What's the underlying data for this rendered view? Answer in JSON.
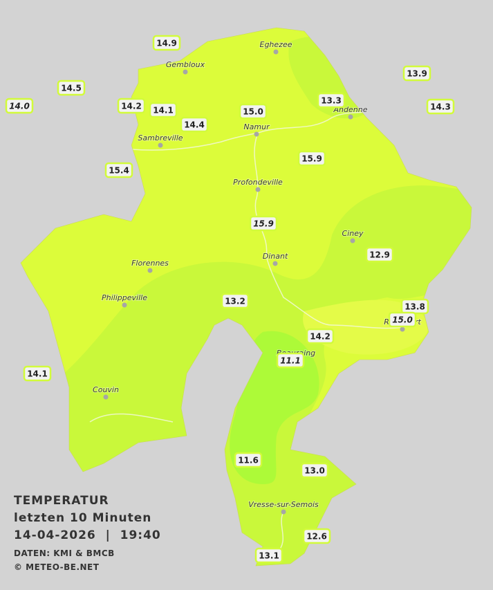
{
  "cities": [
    {
      "name": "Eghezee"
    },
    {
      "name": "Gembloux"
    },
    {
      "name": "Andenne"
    },
    {
      "name": "Namur"
    },
    {
      "name": "Sambreville"
    },
    {
      "name": "Profondeville"
    },
    {
      "name": "Ciney"
    },
    {
      "name": "Dinant"
    },
    {
      "name": "Florennes"
    },
    {
      "name": "Philippeville"
    },
    {
      "name": "Beauraing"
    },
    {
      "name": "Rochefort"
    },
    {
      "name": "Couvin"
    },
    {
      "name": "Vresse-sur-Semois"
    }
  ],
  "stations": [
    {
      "label": "14.9",
      "italic": false
    },
    {
      "label": "14.5",
      "italic": false
    },
    {
      "label": "14.0",
      "italic": true
    },
    {
      "label": "14.2",
      "italic": false
    },
    {
      "label": "14.1",
      "italic": false
    },
    {
      "label": "14.4",
      "italic": false
    },
    {
      "label": "15.0",
      "italic": false
    },
    {
      "label": "13.3",
      "italic": false
    },
    {
      "label": "13.9",
      "italic": false
    },
    {
      "label": "14.3",
      "italic": false
    },
    {
      "label": "15.4",
      "italic": false
    },
    {
      "label": "15.9",
      "italic": false
    },
    {
      "label": "15.9",
      "italic": true
    },
    {
      "label": "12.9",
      "italic": false
    },
    {
      "label": "13.2",
      "italic": false
    },
    {
      "label": "13.8",
      "italic": false
    },
    {
      "label": "15.0",
      "italic": true
    },
    {
      "label": "14.2",
      "italic": false
    },
    {
      "label": "11.1",
      "italic": true
    },
    {
      "label": "14.1",
      "italic": false
    },
    {
      "label": "11.6",
      "italic": false
    },
    {
      "label": "13.0",
      "italic": false
    },
    {
      "label": "12.6",
      "italic": false
    },
    {
      "label": "13.1",
      "italic": false
    }
  ],
  "legend": {
    "title": "TEMPERATUR",
    "period": "letzten 10 Minuten",
    "datetime": "14-04-2026  |  19:40",
    "source": "DATEN: KMI & BMCB",
    "copyright": "© METEO-BE.NET"
  }
}
